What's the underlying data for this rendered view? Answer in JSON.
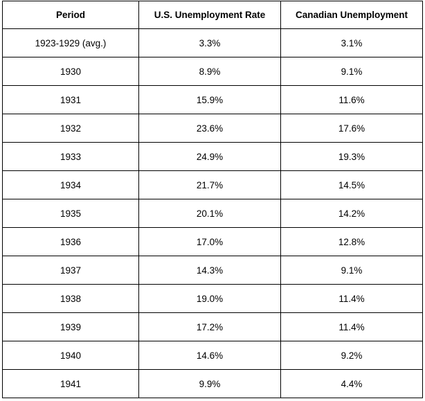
{
  "table": {
    "headers": [
      "Period",
      "U.S. Unemployment Rate",
      "Canadian Unemployment"
    ],
    "rows": [
      [
        "1923-1929 (avg.)",
        "3.3%",
        "3.1%"
      ],
      [
        "1930",
        "8.9%",
        "9.1%"
      ],
      [
        "1931",
        "15.9%",
        "11.6%"
      ],
      [
        "1932",
        "23.6%",
        "17.6%"
      ],
      [
        "1933",
        "24.9%",
        "19.3%"
      ],
      [
        "1934",
        "21.7%",
        "14.5%"
      ],
      [
        "1935",
        "20.1%",
        "14.2%"
      ],
      [
        "1936",
        "17.0%",
        "12.8%"
      ],
      [
        "1937",
        "14.3%",
        "9.1%"
      ],
      [
        "1938",
        "19.0%",
        "11.4%"
      ],
      [
        "1939",
        "17.2%",
        "11.4%"
      ],
      [
        "1940",
        "14.6%",
        "9.2%"
      ],
      [
        "1941",
        "9.9%",
        "4.4%"
      ]
    ]
  }
}
